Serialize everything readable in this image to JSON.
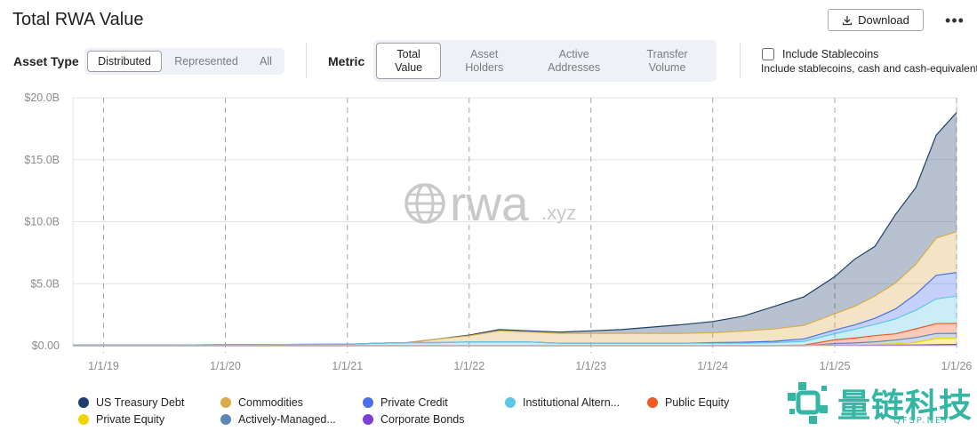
{
  "header": {
    "title": "Total RWA Value",
    "download_label": "Download",
    "more_label": "•••"
  },
  "controls": {
    "asset_type_label": "Asset Type",
    "asset_type_options": [
      "Distributed",
      "Represented",
      "All"
    ],
    "asset_type_selected": "Distributed",
    "metric_label": "Metric",
    "metric_options": [
      [
        "Total",
        "Value"
      ],
      [
        "Asset",
        "Holders"
      ],
      [
        "Active",
        "Addresses"
      ],
      [
        "Transfer",
        "Volume"
      ]
    ],
    "metric_selected": "Total Value",
    "stablecoins_label": "Include Stablecoins",
    "stablecoins_checked": false,
    "stablecoins_desc": "Include stablecoins, cash and cash-equivalents"
  },
  "watermark": {
    "text": "rwa",
    "suffix": ".xyz"
  },
  "branding": {
    "cn": "量链科技",
    "en": "QFSP.NET"
  },
  "chart_data": {
    "type": "area",
    "stacked": true,
    "x": [
      "2018-10-01",
      "2019-01-01",
      "2019-07-01",
      "2020-01-01",
      "2020-07-01",
      "2021-01-01",
      "2021-04-01",
      "2021-07-01",
      "2021-10-01",
      "2022-01-01",
      "2022-04-01",
      "2022-07-01",
      "2022-10-01",
      "2023-01-01",
      "2023-04-01",
      "2023-07-01",
      "2023-10-01",
      "2024-01-01",
      "2024-04-01",
      "2024-07-01",
      "2024-10-01",
      "2025-01-01",
      "2025-03-01",
      "2025-05-01",
      "2025-07-01",
      "2025-09-01",
      "2025-11-01",
      "2026-01-01"
    ],
    "x_tick_labels": [
      "1/1/19",
      "1/1/20",
      "1/1/21",
      "1/1/22",
      "1/1/23",
      "1/1/24",
      "1/1/25",
      "1/1/26"
    ],
    "x_ticks": [
      "2019-01-01",
      "2020-01-01",
      "2021-01-01",
      "2022-01-01",
      "2023-01-01",
      "2024-01-01",
      "2025-01-01",
      "2026-01-01"
    ],
    "xlim": [
      "2018-10-01",
      "2026-01-01"
    ],
    "ylim": [
      0,
      20
    ],
    "y_ticks": [
      0,
      5,
      10,
      15,
      20
    ],
    "y_tick_labels": [
      "$0.00",
      "$5.0B",
      "$10.0B",
      "$15.0B",
      "$20.0B"
    ],
    "grid": true,
    "legend_position": "bottom",
    "series": [
      {
        "name": "Corporate Bonds",
        "color": "#7b3fd4",
        "values": [
          0,
          0,
          0,
          0,
          0,
          0,
          0,
          0,
          0,
          0,
          0,
          0,
          0,
          0,
          0,
          0,
          0,
          0,
          0,
          0,
          0,
          0.02,
          0.02,
          0.03,
          0.05,
          0.06,
          0.08,
          0.1
        ]
      },
      {
        "name": "Private Equity",
        "color": "#f2d500",
        "values": [
          0,
          0,
          0,
          0,
          0,
          0,
          0,
          0,
          0,
          0,
          0,
          0,
          0,
          0,
          0,
          0,
          0,
          0,
          0,
          0,
          0,
          0.05,
          0.05,
          0.08,
          0.1,
          0.2,
          0.5,
          0.5
        ]
      },
      {
        "name": "Actively-Managed...",
        "color": "#5a87b8",
        "values": [
          0,
          0,
          0,
          0,
          0,
          0,
          0,
          0,
          0,
          0,
          0,
          0,
          0,
          0,
          0,
          0,
          0,
          0,
          0,
          0,
          0,
          0.1,
          0.15,
          0.2,
          0.3,
          0.4,
          0.4,
          0.4
        ]
      },
      {
        "name": "Public Equity",
        "color": "#ee5a24",
        "values": [
          0,
          0,
          0,
          0,
          0,
          0,
          0,
          0,
          0,
          0,
          0,
          0,
          0,
          0,
          0,
          0,
          0,
          0,
          0,
          0,
          0.05,
          0.3,
          0.4,
          0.5,
          0.5,
          0.7,
          0.8,
          0.8
        ]
      },
      {
        "name": "Institutional Altern...",
        "color": "#5bc8e6",
        "values": [
          0.05,
          0.05,
          0.05,
          0.08,
          0.1,
          0.12,
          0.2,
          0.25,
          0.25,
          0.3,
          0.3,
          0.3,
          0.2,
          0.2,
          0.2,
          0.2,
          0.2,
          0.2,
          0.2,
          0.25,
          0.3,
          0.5,
          0.7,
          0.9,
          1.2,
          1.5,
          2.0,
          2.2
        ]
      },
      {
        "name": "Private Credit",
        "color": "#4a6fe8",
        "values": [
          0,
          0,
          0,
          0,
          0,
          0,
          0,
          0,
          0,
          0,
          0,
          0,
          0,
          0,
          0,
          0,
          0,
          0.05,
          0.08,
          0.1,
          0.2,
          0.3,
          0.35,
          0.5,
          0.8,
          1.3,
          1.9,
          1.9
        ]
      },
      {
        "name": "Commodities",
        "color": "#d9ab4a",
        "values": [
          0,
          0,
          0,
          0,
          0,
          0,
          0,
          0,
          0.3,
          0.5,
          0.9,
          0.8,
          0.8,
          0.8,
          0.8,
          0.8,
          0.8,
          0.8,
          0.9,
          1.0,
          1.1,
          1.3,
          1.5,
          1.8,
          2.1,
          2.4,
          3.0,
          3.3
        ]
      },
      {
        "name": "US Treasury Debt",
        "color": "#1e3f6b",
        "values": [
          0,
          0,
          0,
          0,
          0,
          0,
          0,
          0,
          0,
          0.05,
          0.1,
          0.1,
          0.1,
          0.2,
          0.3,
          0.5,
          0.7,
          0.9,
          1.2,
          1.8,
          2.3,
          3.0,
          3.8,
          4.0,
          5.5,
          6.2,
          8.3,
          9.6
        ]
      }
    ]
  },
  "legend": [
    {
      "name": "US Treasury Debt",
      "color": "#1e3f6b"
    },
    {
      "name": "Commodities",
      "color": "#d9ab4a"
    },
    {
      "name": "Private Credit",
      "color": "#4a6fe8"
    },
    {
      "name": "Institutional Altern...",
      "color": "#5bc8e6"
    },
    {
      "name": "Public Equity",
      "color": "#ee5a24"
    },
    {
      "name": "Private Equity",
      "color": "#f2d500"
    },
    {
      "name": "Actively-Managed...",
      "color": "#5a87b8"
    },
    {
      "name": "Corporate Bonds",
      "color": "#7b3fd4"
    }
  ]
}
